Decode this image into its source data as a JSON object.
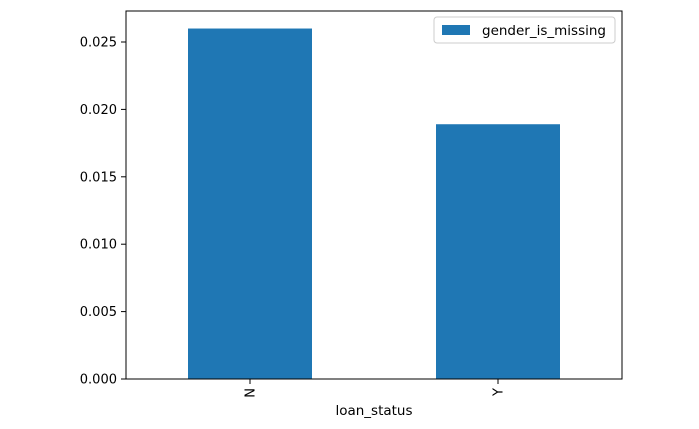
{
  "chart_data": {
    "type": "bar",
    "categories": [
      "N",
      "Y"
    ],
    "series": [
      {
        "name": "gender_is_missing",
        "values": [
          0.026,
          0.0189
        ],
        "color": "#1f77b4"
      }
    ],
    "xlabel": "loan_status",
    "ylabel": "",
    "ylim": [
      0,
      0.0273
    ],
    "yticks": [
      0.0,
      0.005,
      0.01,
      0.015,
      0.02,
      0.025
    ],
    "ytick_labels": [
      "0.000",
      "0.005",
      "0.010",
      "0.015",
      "0.020",
      "0.025"
    ],
    "xtick_rotation": "vertical",
    "grid": false,
    "legend_position": "top-right"
  }
}
